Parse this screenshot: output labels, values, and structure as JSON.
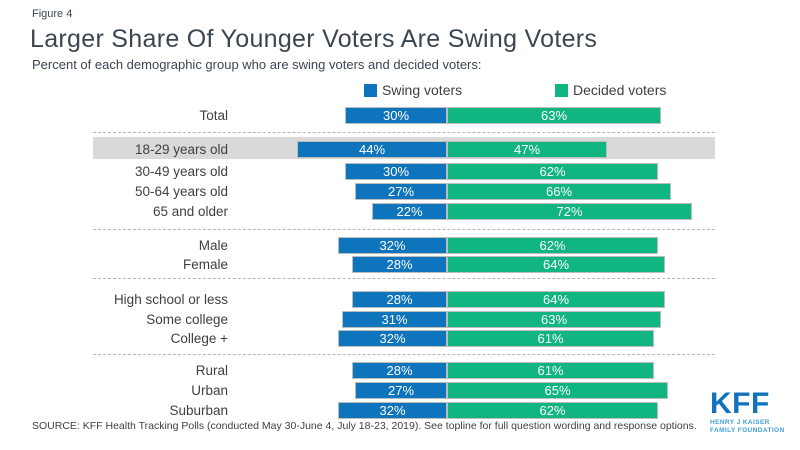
{
  "figure_label": "Figure 4",
  "title": "Larger Share Of Younger Voters Are Swing Voters",
  "subtitle": "Percent of each demographic group who are swing voters and decided voters:",
  "legend": [
    {
      "label": "Swing voters",
      "color": "#0e74bc"
    },
    {
      "label": "Decided voters",
      "color": "#10b582"
    }
  ],
  "colors": {
    "swing": "#0e74bc",
    "decided": "#10b582",
    "highlight_band": "#d9d9d9",
    "heading_text": "#3b4651",
    "logo_blue": "#1173bd",
    "logo_light_blue": "#3f9fd8"
  },
  "chart_data": {
    "type": "bar",
    "orientation": "horizontal",
    "stacked": true,
    "value_unit": "%",
    "series_names": [
      "Swing voters",
      "Decided voters"
    ],
    "note": "All bars share a common boundary between the swing and decided segments; the 18-29 years old row is highlighted with a gray band.",
    "sections": [
      {
        "name": "total",
        "rows": [
          {
            "label": "Total",
            "swing": 30,
            "decided": 63
          }
        ]
      },
      {
        "name": "age",
        "rows": [
          {
            "label": "18-29 years old",
            "swing": 44,
            "decided": 47,
            "highlighted": true
          },
          {
            "label": "30-49 years old",
            "swing": 30,
            "decided": 62
          },
          {
            "label": "50-64 years old",
            "swing": 27,
            "decided": 66
          },
          {
            "label": "65 and older",
            "swing": 22,
            "decided": 72
          }
        ]
      },
      {
        "name": "gender",
        "rows": [
          {
            "label": "Male",
            "swing": 32,
            "decided": 62
          },
          {
            "label": "Female",
            "swing": 28,
            "decided": 64
          }
        ]
      },
      {
        "name": "education",
        "rows": [
          {
            "label": "High school or less",
            "swing": 28,
            "decided": 64
          },
          {
            "label": "Some college",
            "swing": 31,
            "decided": 63
          },
          {
            "label": "College +",
            "swing": 32,
            "decided": 61
          }
        ]
      },
      {
        "name": "community",
        "rows": [
          {
            "label": "Rural",
            "swing": 28,
            "decided": 61
          },
          {
            "label": "Urban",
            "swing": 27,
            "decided": 65
          },
          {
            "label": "Suburban",
            "swing": 32,
            "decided": 62
          }
        ]
      }
    ]
  },
  "source": "SOURCE: KFF Health Tracking Polls (conducted May 30-June 4, July 18-23, 2019). See topline for full question wording and response options.",
  "logo": {
    "text": "KFF",
    "tagline_line1": "HENRY J KAISER",
    "tagline_line2": "FAMILY FOUNDATION"
  }
}
